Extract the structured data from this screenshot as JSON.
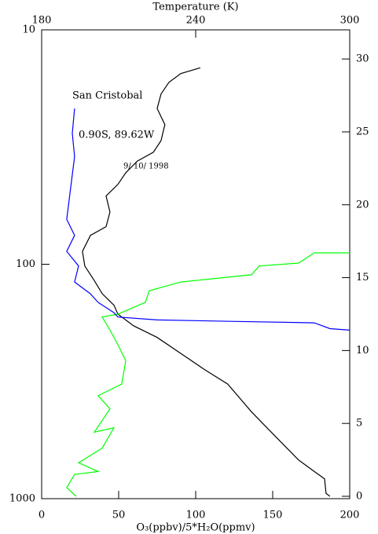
{
  "chart_data": {
    "type": "line",
    "x2label": "Temperature (K)",
    "xlabel": "O₃(ppbv)/5*H₂O(ppmv)",
    "annotations": [
      "San Cristobal",
      "0.90S, 89.62W",
      "9/ 10/ 1998"
    ],
    "xlim": [
      0,
      200
    ],
    "xticks": [
      0,
      50,
      100,
      150,
      200
    ],
    "x2lim": [
      180,
      300
    ],
    "x2ticks": [
      180,
      240,
      300
    ],
    "ylim": [
      1000,
      10
    ],
    "ylog": true,
    "yticks": [
      1000,
      100,
      10
    ],
    "y2lim": [
      0,
      32
    ],
    "y2ticks": [
      0,
      5,
      10,
      15,
      20,
      25,
      30
    ],
    "series": [
      {
        "color": "#000000",
        "xaxis": "x2",
        "axis": "y2",
        "x": [
          292.3,
          290.8,
          290.2,
          286.2,
          280.0,
          267.8,
          261.7,
          252.5,
          243.4,
          234.2,
          225.0,
          215.8,
          209.7,
          208.2,
          203.6,
          200.5,
          196.8,
          195.9,
          199.0,
          205.1,
          206.6,
          205.1,
          209.7,
          212.8,
          217.3,
          223.5,
          226.5,
          228.0,
          225.0,
          226.5,
          229.6,
          234.2,
          241.8
        ],
        "y": [
          0,
          0.2,
          1.2,
          1.7,
          2.5,
          4.7,
          5.8,
          7.7,
          8.7,
          9.8,
          10.9,
          11.7,
          12.5,
          13.1,
          13.9,
          14.8,
          15.8,
          16.8,
          17.9,
          18.5,
          19.5,
          20.6,
          21.4,
          22.2,
          23.0,
          23.6,
          24.4,
          25.5,
          26.6,
          27.6,
          28.4,
          29.0,
          29.4
        ]
      },
      {
        "color": "#00ff00",
        "xaxis": "x",
        "axis": "y2",
        "x": [
          22.4,
          16.3,
          21.4,
          36.7,
          24.0,
          39.3,
          46.9,
          34.2,
          44.4,
          36.7,
          52.0,
          54.6,
          49.5,
          44.4,
          39.3,
          49.5,
          67.3,
          69.9,
          90.3,
          136.2,
          141.3,
          166.8,
          177.0,
          200.0
        ],
        "y": [
          0,
          0.6,
          1.5,
          1.7,
          2.3,
          3.3,
          4.7,
          4.4,
          6.0,
          6.9,
          7.7,
          9.3,
          10.4,
          11.4,
          12.3,
          12.5,
          13.3,
          14.1,
          14.7,
          15.2,
          15.8,
          16.0,
          16.7,
          16.7
        ]
      },
      {
        "color": "#0000ff",
        "xaxis": "x",
        "axis": "y2",
        "x": [
          21.4,
          19.9,
          21.4,
          18.9,
          16.3,
          21.4,
          16.3,
          24.0,
          21.4,
          31.6,
          36.7,
          46.9,
          49.5,
          75.0,
          126.0,
          177.0,
          187.2,
          200.0
        ],
        "y": [
          26.6,
          24.9,
          23.3,
          21.2,
          19.0,
          17.9,
          16.8,
          15.8,
          14.7,
          13.9,
          13.3,
          12.6,
          12.3,
          12.1,
          12.0,
          11.9,
          11.5,
          11.4
        ]
      }
    ]
  }
}
